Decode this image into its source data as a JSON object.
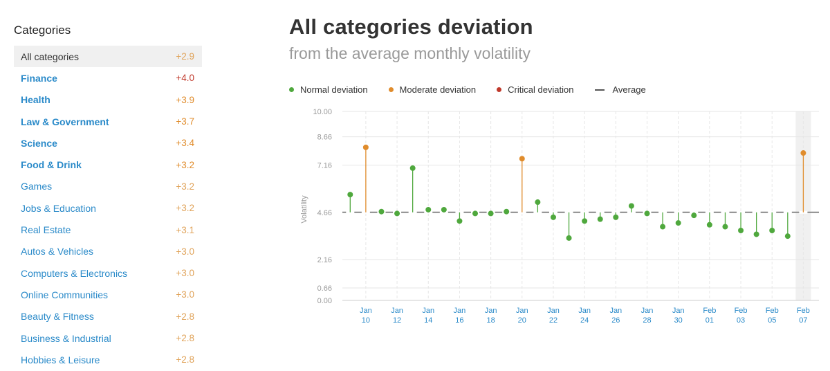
{
  "sidebar": {
    "title": "Categories",
    "items": [
      {
        "label": "All categories",
        "value": "+2.9",
        "selected": true,
        "bold": false,
        "color": "#e0a35a"
      },
      {
        "label": "Finance",
        "value": "+4.0",
        "bold": true,
        "color": "#c0392b"
      },
      {
        "label": "Health",
        "value": "+3.9",
        "bold": true,
        "color": "#e08c2c"
      },
      {
        "label": "Law & Government",
        "value": "+3.7",
        "bold": true,
        "color": "#e08c2c"
      },
      {
        "label": "Science",
        "value": "+3.4",
        "bold": true,
        "color": "#e08c2c"
      },
      {
        "label": "Food & Drink",
        "value": "+3.2",
        "bold": true,
        "color": "#e08c2c"
      },
      {
        "label": "Games",
        "value": "+3.2",
        "bold": false,
        "color": "#e0a35a"
      },
      {
        "label": "Jobs & Education",
        "value": "+3.2",
        "bold": false,
        "color": "#e0a35a"
      },
      {
        "label": "Real Estate",
        "value": "+3.1",
        "bold": false,
        "color": "#e0a35a"
      },
      {
        "label": "Autos & Vehicles",
        "value": "+3.0",
        "bold": false,
        "color": "#e0a35a"
      },
      {
        "label": "Computers & Electronics",
        "value": "+3.0",
        "bold": false,
        "color": "#e0a35a"
      },
      {
        "label": "Online Communities",
        "value": "+3.0",
        "bold": false,
        "color": "#e0a35a"
      },
      {
        "label": "Beauty & Fitness",
        "value": "+2.8",
        "bold": false,
        "color": "#e0a35a"
      },
      {
        "label": "Business & Industrial",
        "value": "+2.8",
        "bold": false,
        "color": "#e0a35a"
      },
      {
        "label": "Hobbies & Leisure",
        "value": "+2.8",
        "bold": false,
        "color": "#e0a35a"
      }
    ]
  },
  "header": {
    "title": "All categories deviation",
    "subtitle": "from the average monthly volatility"
  },
  "legend": [
    {
      "label": "Normal deviation",
      "color": "#4fa83d",
      "kind": "dot"
    },
    {
      "label": "Moderate deviation",
      "color": "#e08c2c",
      "kind": "dot"
    },
    {
      "label": "Critical deviation",
      "color": "#c0392b",
      "kind": "dot"
    },
    {
      "label": "Average",
      "color": "#555555",
      "kind": "line"
    }
  ],
  "chart_data": {
    "type": "scatter",
    "ylabel": "Volatility",
    "ylim": [
      0,
      10
    ],
    "yticks": [
      "0.00",
      "0.66",
      "2.16",
      "4.66",
      "7.16",
      "8.66",
      "10.00"
    ],
    "average": 4.66,
    "grid": true,
    "highlighted_last": true,
    "xticks": [
      {
        "top": "Jan",
        "bottom": "10",
        "index": 1
      },
      {
        "top": "Jan",
        "bottom": "12",
        "index": 3
      },
      {
        "top": "Jan",
        "bottom": "14",
        "index": 5
      },
      {
        "top": "Jan",
        "bottom": "16",
        "index": 7
      },
      {
        "top": "Jan",
        "bottom": "18",
        "index": 9
      },
      {
        "top": "Jan",
        "bottom": "20",
        "index": 11
      },
      {
        "top": "Jan",
        "bottom": "22",
        "index": 13
      },
      {
        "top": "Jan",
        "bottom": "24",
        "index": 15
      },
      {
        "top": "Jan",
        "bottom": "26",
        "index": 17
      },
      {
        "top": "Jan",
        "bottom": "28",
        "index": 19
      },
      {
        "top": "Jan",
        "bottom": "30",
        "index": 21
      },
      {
        "top": "Feb",
        "bottom": "01",
        "index": 23
      },
      {
        "top": "Feb",
        "bottom": "03",
        "index": 25
      },
      {
        "top": "Feb",
        "bottom": "05",
        "index": 27
      },
      {
        "top": "Feb",
        "bottom": "07",
        "index": 29
      }
    ],
    "points": [
      {
        "x": "Jan 09",
        "y": 5.6,
        "level": "normal"
      },
      {
        "x": "Jan 10",
        "y": 8.1,
        "level": "moderate"
      },
      {
        "x": "Jan 11",
        "y": 4.7,
        "level": "normal"
      },
      {
        "x": "Jan 12",
        "y": 4.6,
        "level": "normal"
      },
      {
        "x": "Jan 13",
        "y": 7.0,
        "level": "normal"
      },
      {
        "x": "Jan 14",
        "y": 4.8,
        "level": "normal"
      },
      {
        "x": "Jan 15",
        "y": 4.8,
        "level": "normal"
      },
      {
        "x": "Jan 16",
        "y": 4.2,
        "level": "normal"
      },
      {
        "x": "Jan 17",
        "y": 4.6,
        "level": "normal"
      },
      {
        "x": "Jan 18",
        "y": 4.6,
        "level": "normal"
      },
      {
        "x": "Jan 19",
        "y": 4.7,
        "level": "normal"
      },
      {
        "x": "Jan 20",
        "y": 7.5,
        "level": "moderate"
      },
      {
        "x": "Jan 21",
        "y": 5.2,
        "level": "normal"
      },
      {
        "x": "Jan 22",
        "y": 4.4,
        "level": "normal"
      },
      {
        "x": "Jan 23",
        "y": 3.3,
        "level": "normal"
      },
      {
        "x": "Jan 24",
        "y": 4.2,
        "level": "normal"
      },
      {
        "x": "Jan 25",
        "y": 4.3,
        "level": "normal"
      },
      {
        "x": "Jan 26",
        "y": 4.4,
        "level": "normal"
      },
      {
        "x": "Jan 27",
        "y": 5.0,
        "level": "normal"
      },
      {
        "x": "Jan 28",
        "y": 4.6,
        "level": "normal"
      },
      {
        "x": "Jan 29",
        "y": 3.9,
        "level": "normal"
      },
      {
        "x": "Jan 30",
        "y": 4.1,
        "level": "normal"
      },
      {
        "x": "Jan 31",
        "y": 4.5,
        "level": "normal"
      },
      {
        "x": "Feb 01",
        "y": 4.0,
        "level": "normal"
      },
      {
        "x": "Feb 02",
        "y": 3.9,
        "level": "normal"
      },
      {
        "x": "Feb 03",
        "y": 3.7,
        "level": "normal"
      },
      {
        "x": "Feb 04",
        "y": 3.5,
        "level": "normal"
      },
      {
        "x": "Feb 05",
        "y": 3.7,
        "level": "normal"
      },
      {
        "x": "Feb 06",
        "y": 3.4,
        "level": "normal"
      },
      {
        "x": "Feb 07",
        "y": 7.8,
        "level": "moderate"
      }
    ],
    "colors": {
      "normal": "#4fa83d",
      "moderate": "#e08c2c",
      "critical": "#c0392b",
      "grid": "#e6e6e6",
      "axis": "#999999",
      "tick_label": "#2a8ac9",
      "average": "#888888",
      "highlight": "#f0f0f0"
    }
  }
}
